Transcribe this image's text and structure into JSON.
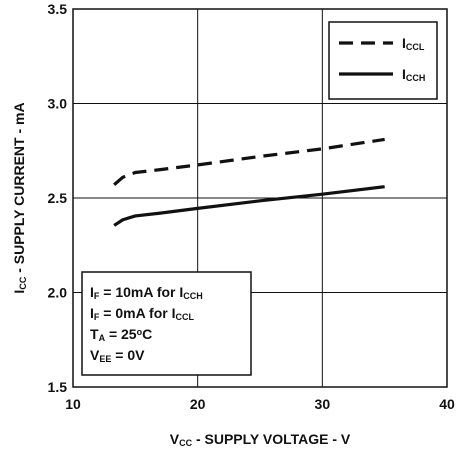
{
  "chart_data": {
    "type": "line",
    "xlabel": {
      "main": "V",
      "sub": "CC",
      "rest": " - SUPPLY VOLTAGE - V"
    },
    "ylabel": {
      "main": "I",
      "sub": "CC",
      "rest": " - SUPPLY CURRENT - mA"
    },
    "xlim": [
      10,
      40
    ],
    "ylim": [
      1.5,
      3.5
    ],
    "x_ticks": [
      "10",
      "20",
      "30",
      "40"
    ],
    "y_ticks": [
      "1.5",
      "2.0",
      "2.5",
      "3.0",
      "3.5"
    ],
    "grid": true,
    "legend_position": "top-right",
    "series": [
      {
        "name": {
          "main": "I",
          "sub": "CCL"
        },
        "style": "dashed",
        "color": "#111111",
        "x": [
          13.3,
          14.0,
          15.0,
          17.0,
          20.0,
          25.0,
          30.0,
          35.0
        ],
        "y": [
          2.57,
          2.61,
          2.635,
          2.65,
          2.675,
          2.72,
          2.76,
          2.81
        ]
      },
      {
        "name": {
          "main": "I",
          "sub": "CCH"
        },
        "style": "solid",
        "color": "#111111",
        "x": [
          13.3,
          14.0,
          15.0,
          17.0,
          20.0,
          25.0,
          30.0,
          35.0
        ],
        "y": [
          2.355,
          2.385,
          2.405,
          2.42,
          2.445,
          2.485,
          2.52,
          2.56
        ]
      }
    ],
    "conditions": [
      {
        "parts": [
          [
            "I",
            ""
          ],
          [
            "F",
            "sub"
          ],
          [
            " = 10mA for I",
            ""
          ],
          [
            "CCH",
            "sub"
          ]
        ]
      },
      {
        "parts": [
          [
            "I",
            ""
          ],
          [
            "F",
            "sub"
          ],
          [
            " = 0mA for I",
            ""
          ],
          [
            "CCL",
            "sub"
          ]
        ]
      },
      {
        "parts": [
          [
            "T",
            ""
          ],
          [
            "A",
            "sub"
          ],
          [
            " = 25",
            ""
          ],
          [
            "o",
            "sup"
          ],
          [
            "C",
            ""
          ]
        ]
      },
      {
        "parts": [
          [
            "V",
            ""
          ],
          [
            "EE",
            "sub"
          ],
          [
            " = 0V",
            ""
          ]
        ]
      }
    ]
  }
}
